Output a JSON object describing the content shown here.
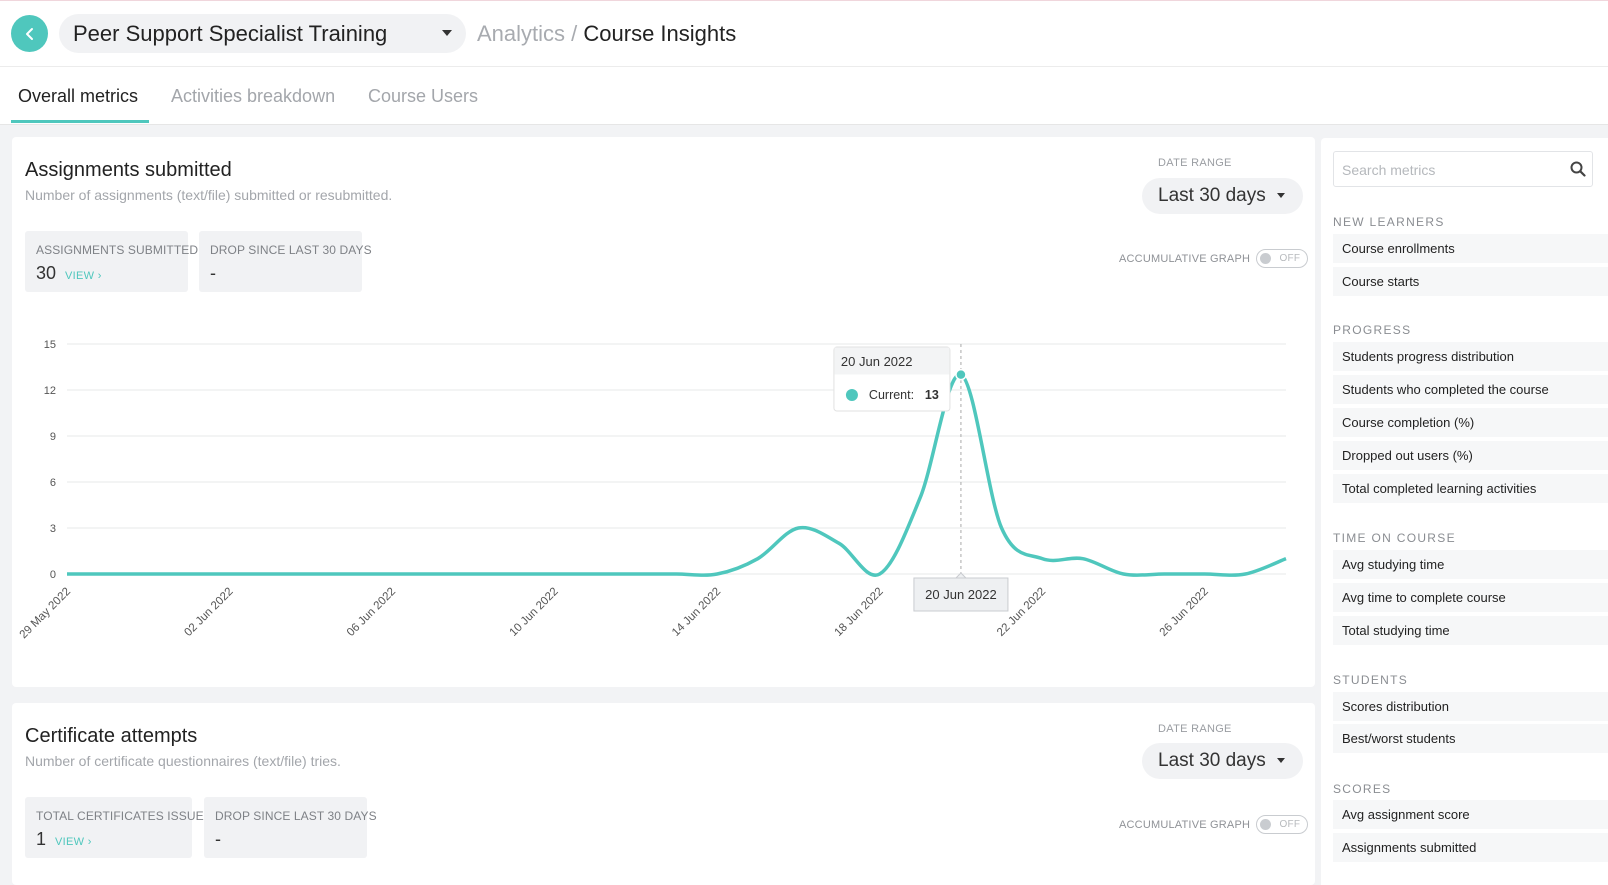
{
  "header": {
    "course_name": "Peer Support Specialist Training",
    "breadcrumb_parent": "Analytics /",
    "breadcrumb_current": "Course Insights"
  },
  "tabs": [
    {
      "label": "Overall metrics",
      "active": true
    },
    {
      "label": "Activities breakdown",
      "active": false
    },
    {
      "label": "Course Users",
      "active": false
    }
  ],
  "colors": {
    "accent": "#4fc7bd"
  },
  "assignments_card": {
    "title": "Assignments submitted",
    "subtitle": "Number of assignments (text/file) submitted or resubmitted.",
    "date_range_label": "DATE RANGE",
    "date_range_value": "Last 30 days",
    "accumulative_label": "ACCUMULATIVE GRAPH",
    "toggle_state": "OFF",
    "stats": [
      {
        "label": "ASSIGNMENTS SUBMITTED",
        "value": "30",
        "link": "VIEW"
      },
      {
        "label": "DROP SINCE LAST 30 DAYS",
        "value": "-"
      }
    ],
    "tooltip": {
      "date": "20 Jun 2022",
      "series": "Current:",
      "value": "13"
    },
    "crosshair_label": "20 Jun 2022"
  },
  "certificate_card": {
    "title": "Certificate attempts",
    "subtitle": "Number of certificate questionnaires (text/file) tries.",
    "date_range_label": "DATE RANGE",
    "date_range_value": "Last 30 days",
    "accumulative_label": "ACCUMULATIVE GRAPH",
    "toggle_state": "OFF",
    "stats": [
      {
        "label": "TOTAL CERTIFICATES ISSUED",
        "value": "1",
        "link": "VIEW"
      },
      {
        "label": "DROP SINCE LAST 30 DAYS",
        "value": "-"
      }
    ]
  },
  "chart_data": {
    "type": "line",
    "series": [
      {
        "name": "Current",
        "color": "#4fc7bd",
        "values": [
          0,
          0,
          0,
          0,
          0,
          0,
          0,
          0,
          0,
          0,
          0,
          0,
          0,
          0,
          0,
          0,
          0,
          1,
          3,
          2,
          0,
          5,
          13,
          3,
          1,
          1,
          0,
          0,
          0,
          0,
          1
        ]
      }
    ],
    "x": [
      "29 May 2022",
      "30 May 2022",
      "31 May 2022",
      "01 Jun 2022",
      "02 Jun 2022",
      "03 Jun 2022",
      "04 Jun 2022",
      "05 Jun 2022",
      "06 Jun 2022",
      "07 Jun 2022",
      "08 Jun 2022",
      "09 Jun 2022",
      "10 Jun 2022",
      "11 Jun 2022",
      "12 Jun 2022",
      "13 Jun 2022",
      "14 Jun 2022",
      "15 Jun 2022",
      "16 Jun 2022",
      "17 Jun 2022",
      "18 Jun 2022",
      "19 Jun 2022",
      "20 Jun 2022",
      "21 Jun 2022",
      "22 Jun 2022",
      "23 Jun 2022",
      "24 Jun 2022",
      "25 Jun 2022",
      "26 Jun 2022",
      "27 Jun 2022",
      "28 Jun 2022"
    ],
    "x_tick_labels": [
      "29 May 2022",
      "02 Jun 2022",
      "06 Jun 2022",
      "10 Jun 2022",
      "14 Jun 2022",
      "18 Jun 2022",
      "22 Jun 2022",
      "26 Jun 2022"
    ],
    "y_ticks": [
      "0",
      "3",
      "6",
      "9",
      "12",
      "15"
    ],
    "ylim": [
      0,
      15
    ],
    "grid": true,
    "highlight": {
      "x": "20 Jun 2022",
      "value": 13
    }
  },
  "sidebar": {
    "search_placeholder": "Search metrics",
    "sections": [
      {
        "heading": "NEW LEARNERS",
        "items": [
          "Course enrollments",
          "Course starts"
        ]
      },
      {
        "heading": "PROGRESS",
        "items": [
          "Students progress distribution",
          "Students who completed the course",
          "Course completion (%)",
          "Dropped out users (%)",
          "Total completed learning activities"
        ]
      },
      {
        "heading": "TIME ON COURSE",
        "items": [
          "Avg studying time",
          "Avg time to complete course",
          "Total studying time"
        ]
      },
      {
        "heading": "STUDENTS",
        "items": [
          "Scores distribution",
          "Best/worst students"
        ]
      },
      {
        "heading": "SCORES",
        "items": [
          "Avg assignment score",
          "Assignments submitted"
        ]
      }
    ]
  }
}
